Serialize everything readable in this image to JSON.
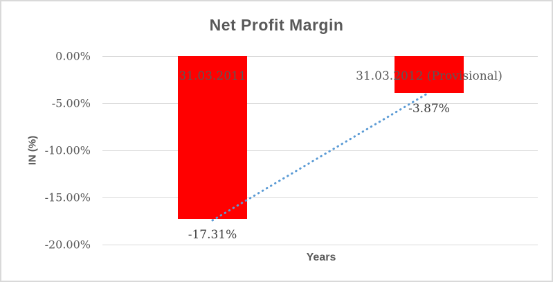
{
  "chart_data": {
    "type": "bar",
    "title": "Net Profit Margin",
    "xlabel": "Years",
    "ylabel": "IN (%)",
    "categories": [
      "31.03.2011",
      "31.03.2012 (Provisional)"
    ],
    "values": [
      -17.31,
      -3.87
    ],
    "data_labels": [
      "-17.31%",
      "-3.87%"
    ],
    "ytick_labels": [
      "0.00%",
      "-5.00%",
      "-10.00%",
      "-15.00%",
      "-20.00%"
    ],
    "ytick_values": [
      0,
      -5,
      -10,
      -15,
      -20
    ],
    "ylim": [
      -20,
      0
    ],
    "grid": true,
    "legend": "none",
    "colors": {
      "bar": "#FF0000",
      "title": "#595959",
      "axis_text": "#595959",
      "category_label": "#595959",
      "data_label": "#404040",
      "gridline": "#D9D9D9",
      "trendline": "#5B9BD5",
      "border": "#D9D9D9"
    },
    "trendline": {
      "type": "linear",
      "style": "dotted",
      "color": "#5B9BD5",
      "from_value": -17.31,
      "to_value": -3.87
    }
  }
}
